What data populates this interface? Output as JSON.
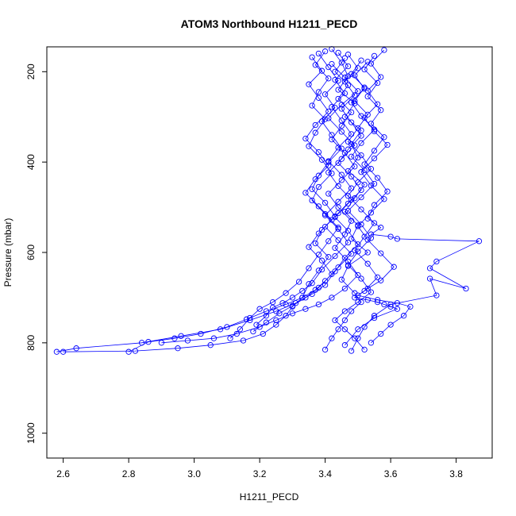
{
  "chart_data": {
    "type": "scatter",
    "title": "ATOM3 Northbound H1211_PECD",
    "xlabel": "H1211_PECD",
    "ylabel": "Pressure (mbar)",
    "xlim": [
      2.55,
      3.91
    ],
    "ylim": [
      1055,
      145
    ],
    "y_reversed": true,
    "xticks": [
      2.6,
      2.8,
      3.0,
      3.2,
      3.4,
      3.6,
      3.8
    ],
    "xtick_labels": [
      "2.6",
      "2.8",
      "3.0",
      "3.2",
      "3.4",
      "3.6",
      "3.8"
    ],
    "yticks": [
      200,
      400,
      600,
      800,
      1000
    ],
    "ytick_labels": [
      "200",
      "400",
      "600",
      "800",
      "1000"
    ],
    "grid": false,
    "legend": "none",
    "marker": "open-circle",
    "connected": true,
    "series_color": "#0000ff",
    "series": [
      {
        "x": [
          3.42,
          3.45,
          3.47,
          3.44,
          3.49,
          3.46,
          3.51,
          3.48,
          3.5,
          3.47,
          3.52,
          3.49,
          3.46,
          3.5,
          3.48,
          3.53,
          3.47,
          3.45,
          3.49,
          3.51,
          3.48,
          3.46,
          3.44,
          3.42,
          3.4
        ],
        "y": [
          150,
          180,
          210,
          240,
          270,
          300,
          330,
          360,
          390,
          420,
          450,
          480,
          510,
          540,
          570,
          600,
          630,
          660,
          690,
          710,
          730,
          750,
          770,
          790,
          815
        ]
      },
      {
        "x": [
          3.38,
          3.41,
          3.44,
          3.4,
          3.43,
          3.39,
          3.42,
          3.45,
          3.41,
          3.38,
          3.36,
          3.4,
          3.43,
          3.39,
          3.37,
          3.41,
          3.38,
          3.35,
          3.33,
          3.3,
          3.28,
          3.25,
          3.21,
          3.15,
          3.05,
          2.95,
          2.82,
          2.6
        ],
        "y": [
          160,
          190,
          220,
          250,
          280,
          310,
          340,
          370,
          400,
          430,
          460,
          490,
          520,
          550,
          580,
          610,
          640,
          670,
          700,
          720,
          740,
          760,
          780,
          795,
          805,
          812,
          818,
          820
        ]
      },
      {
        "x": [
          3.55,
          3.52,
          3.56,
          3.53,
          3.57,
          3.54,
          3.58,
          3.55,
          3.52,
          3.56,
          3.59,
          3.55,
          3.53,
          3.57,
          3.54,
          3.6,
          3.62,
          3.87,
          3.74,
          3.72,
          3.83,
          3.72,
          3.74,
          3.6,
          3.55,
          3.52,
          3.5,
          3.48
        ],
        "y": [
          165,
          195,
          225,
          255,
          285,
          315,
          345,
          375,
          405,
          435,
          465,
          495,
          525,
          545,
          560,
          565,
          570,
          575,
          620,
          635,
          680,
          658,
          695,
          715,
          740,
          765,
          790,
          818
        ]
      },
      {
        "x": [
          3.46,
          3.43,
          3.47,
          3.44,
          3.48,
          3.45,
          3.42,
          3.46,
          3.49,
          3.45,
          3.41,
          3.44,
          3.48,
          3.46,
          3.43,
          3.47,
          3.5,
          3.46,
          3.42,
          3.38,
          3.34,
          3.3,
          3.25,
          3.2,
          3.13,
          3.06,
          2.98,
          2.9
        ],
        "y": [
          170,
          200,
          230,
          260,
          290,
          320,
          350,
          380,
          410,
          440,
          470,
          500,
          530,
          560,
          590,
          620,
          650,
          680,
          700,
          715,
          725,
          735,
          750,
          765,
          780,
          790,
          795,
          800
        ]
      },
      {
        "x": [
          3.4,
          3.37,
          3.41,
          3.38,
          3.36,
          3.4,
          3.37,
          3.35,
          3.39,
          3.42,
          3.38,
          3.36,
          3.4,
          3.44,
          3.41,
          3.38,
          3.35,
          3.32,
          3.28,
          3.24,
          3.2,
          3.17,
          3.14,
          3.11
        ],
        "y": [
          155,
          185,
          215,
          245,
          275,
          305,
          335,
          365,
          395,
          425,
          455,
          485,
          515,
          545,
          575,
          605,
          635,
          665,
          690,
          710,
          725,
          745,
          770,
          790
        ]
      },
      {
        "x": [
          3.51,
          3.48,
          3.52,
          3.49,
          3.53,
          3.5,
          3.47,
          3.51,
          3.54,
          3.5,
          3.47,
          3.51,
          3.55,
          3.52,
          3.49,
          3.53,
          3.56,
          3.52,
          3.49,
          3.53,
          3.56,
          3.58,
          3.6,
          3.62,
          3.55,
          3.5,
          3.46
        ],
        "y": [
          175,
          205,
          235,
          265,
          295,
          325,
          355,
          385,
          415,
          445,
          475,
          505,
          535,
          565,
          595,
          625,
          655,
          685,
          700,
          705,
          710,
          715,
          720,
          725,
          745,
          770,
          805
        ]
      },
      {
        "x": [
          3.44,
          3.47,
          3.43,
          3.46,
          3.42,
          3.45,
          3.48,
          3.44,
          3.41,
          3.45,
          3.48,
          3.44,
          3.4,
          3.44,
          3.47,
          3.43,
          3.39,
          3.36,
          3.33,
          3.3,
          3.27,
          3.24,
          3.22,
          3.19
        ],
        "y": [
          158,
          188,
          218,
          248,
          278,
          308,
          338,
          368,
          398,
          428,
          458,
          488,
          518,
          548,
          578,
          608,
          638,
          668,
          685,
          700,
          712,
          722,
          740,
          760
        ]
      },
      {
        "x": [
          3.58,
          3.54,
          3.57,
          3.53,
          3.56,
          3.52,
          3.55,
          3.59,
          3.55,
          3.51,
          3.54,
          3.58,
          3.54,
          3.5,
          3.53,
          3.57,
          3.61,
          3.57,
          3.53,
          3.5,
          3.56,
          3.62,
          3.66,
          3.64,
          3.6,
          3.57,
          3.54
        ],
        "y": [
          152,
          182,
          212,
          242,
          272,
          302,
          332,
          362,
          392,
          422,
          452,
          482,
          512,
          542,
          572,
          602,
          632,
          662,
          680,
          695,
          705,
          712,
          720,
          740,
          760,
          780,
          800
        ]
      },
      {
        "x": [
          3.47,
          3.5,
          3.46,
          3.49,
          3.45,
          3.48,
          3.51,
          3.47,
          3.44,
          3.48,
          3.51,
          3.47,
          3.43,
          3.47,
          3.5,
          3.46,
          3.43,
          3.4,
          3.36,
          3.31,
          3.25,
          3.17,
          3.08,
          2.96,
          2.84,
          2.64,
          2.58
        ],
        "y": [
          162,
          192,
          222,
          252,
          282,
          312,
          342,
          372,
          402,
          432,
          462,
          492,
          522,
          552,
          582,
          612,
          642,
          672,
          692,
          712,
          730,
          750,
          770,
          785,
          800,
          812,
          820
        ]
      },
      {
        "x": [
          3.36,
          3.39,
          3.35,
          3.38,
          3.41,
          3.37,
          3.34,
          3.38,
          3.41,
          3.37,
          3.34,
          3.38,
          3.42,
          3.38,
          3.35,
          3.39,
          3.42,
          3.38,
          3.34,
          3.3,
          3.26,
          3.22,
          3.18
        ],
        "y": [
          168,
          198,
          228,
          258,
          288,
          318,
          348,
          378,
          408,
          438,
          468,
          498,
          528,
          558,
          588,
          618,
          648,
          678,
          700,
          718,
          735,
          755,
          775
        ]
      },
      {
        "x": [
          3.53,
          3.49,
          3.52,
          3.48,
          3.51,
          3.55,
          3.51,
          3.48,
          3.52,
          3.55,
          3.51,
          3.47,
          3.51,
          3.54,
          3.5,
          3.47,
          3.51,
          3.54,
          3.5,
          3.46,
          3.43,
          3.46,
          3.49,
          3.52
        ],
        "y": [
          178,
          208,
          238,
          268,
          298,
          328,
          358,
          388,
          418,
          448,
          478,
          508,
          538,
          568,
          598,
          628,
          658,
          688,
          710,
          730,
          750,
          770,
          790,
          815
        ]
      },
      {
        "x": [
          3.42,
          3.46,
          3.5,
          3.45,
          3.41,
          3.45,
          3.49,
          3.45,
          3.41,
          3.44,
          3.48,
          3.44,
          3.4,
          3.44,
          3.48,
          3.44,
          3.4,
          3.37,
          3.33,
          3.28,
          3.22,
          3.16,
          3.1,
          3.02,
          2.94,
          2.86,
          2.8
        ],
        "y": [
          183,
          213,
          243,
          273,
          303,
          333,
          363,
          393,
          423,
          453,
          483,
          513,
          543,
          573,
          603,
          633,
          663,
          683,
          700,
          715,
          730,
          748,
          765,
          780,
          790,
          798,
          820
        ]
      }
    ]
  }
}
